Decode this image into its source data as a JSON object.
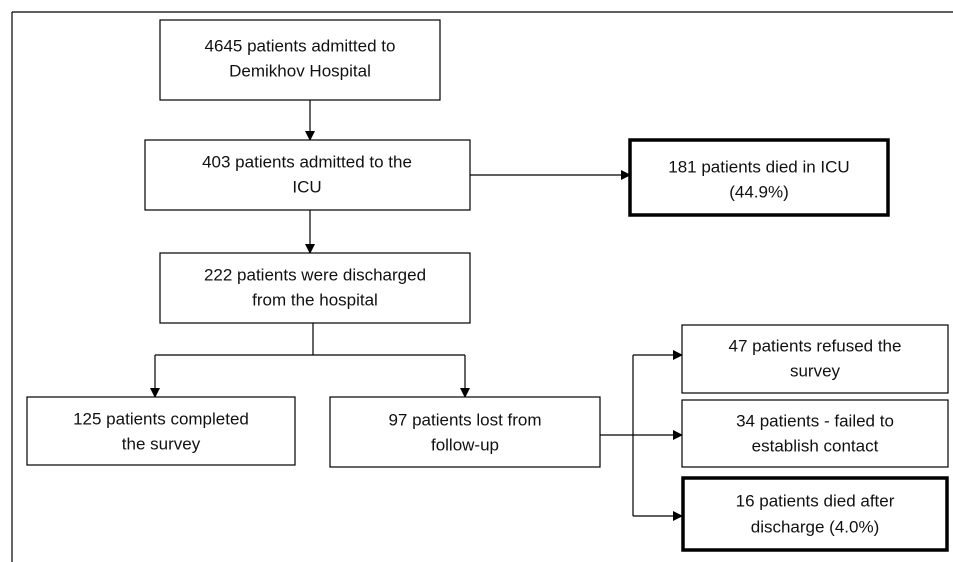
{
  "nodes": [
    {
      "lines": [
        "4645 patients admitted to",
        "Demikhov Hospital"
      ]
    },
    {
      "lines": [
        "403 patients admitted to the",
        "ICU"
      ]
    },
    {
      "lines": [
        "181 patients died in ICU",
        "(44.9%)"
      ]
    },
    {
      "lines": [
        "222 patients were discharged",
        "from the hospital"
      ]
    },
    {
      "lines": [
        "125 patients completed",
        "the survey"
      ]
    },
    {
      "lines": [
        "97 patients lost from",
        "follow-up"
      ]
    },
    {
      "lines": [
        "47 patients refused the",
        "survey"
      ]
    },
    {
      "lines": [
        "34 patients - failed to",
        "establish contact"
      ]
    },
    {
      "lines": [
        "16 patients died after",
        "discharge (4.0%)"
      ]
    }
  ]
}
